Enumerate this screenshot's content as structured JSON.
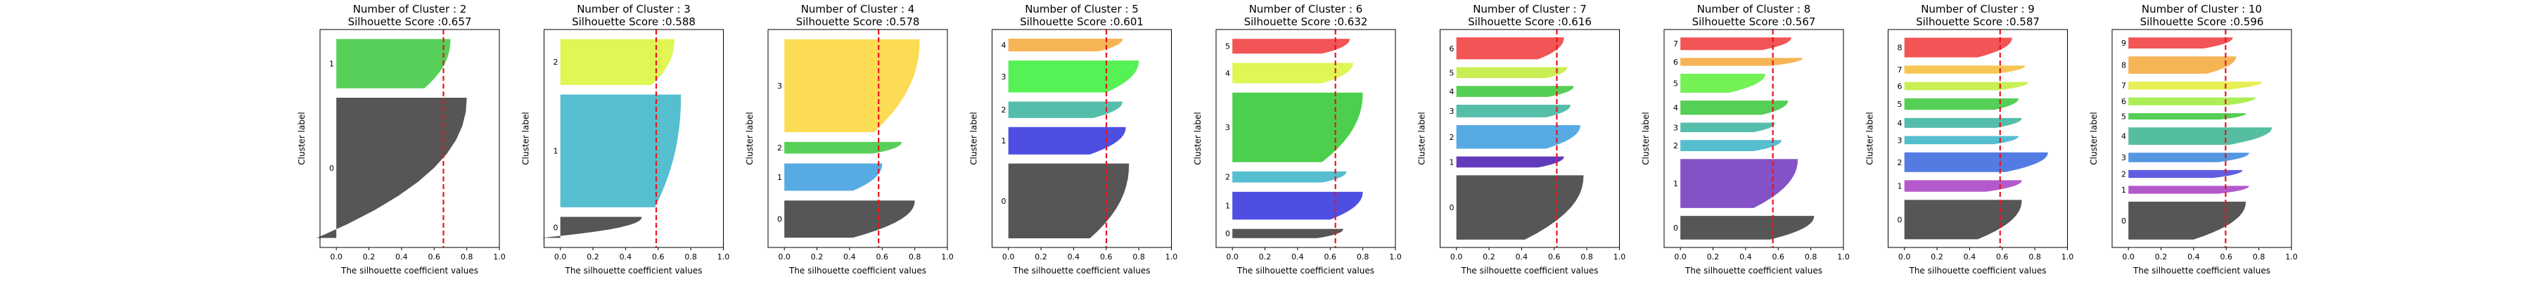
{
  "chart_data": [
    {
      "type": "silhouette",
      "title": "Number of Cluster : 2",
      "subtitle": "Silhouette Score :0.657",
      "xlabel": "The silhouette coefficient values",
      "ylabel": "Cluster label",
      "xlim": [
        -0.1,
        1.0
      ],
      "xticks": [
        0.0,
        0.2,
        0.4,
        0.6,
        0.8,
        1.0
      ],
      "avg_score": 0.657,
      "clusters": [
        {
          "label": "0",
          "size": 148,
          "max": 0.8,
          "min": -0.12,
          "color": "#4d4d4d"
        },
        {
          "label": "1",
          "size": 52,
          "max": 0.7,
          "min": 0.54,
          "color": "#4fcc4f"
        }
      ]
    },
    {
      "type": "silhouette",
      "title": "Number of Cluster : 3",
      "subtitle": "Silhouette Score :0.588",
      "xlabel": "The silhouette coefficient values",
      "ylabel": "Cluster label",
      "xlim": [
        -0.1,
        1.0
      ],
      "xticks": [
        0.0,
        0.2,
        0.4,
        0.6,
        0.8,
        1.0
      ],
      "avg_score": 0.588,
      "clusters": [
        {
          "label": "0",
          "size": 22,
          "max": 0.5,
          "min": -0.12,
          "color": "#4d4d4d"
        },
        {
          "label": "1",
          "size": 118,
          "max": 0.74,
          "min": 0.58,
          "color": "#4cbccc"
        },
        {
          "label": "2",
          "size": 48,
          "max": 0.7,
          "min": 0.56,
          "color": "#ddf54c"
        }
      ]
    },
    {
      "type": "silhouette",
      "title": "Number of Cluster : 4",
      "subtitle": "Silhouette Score :0.578",
      "xlabel": "The silhouette coefficient values",
      "ylabel": "Cluster label",
      "xlim": [
        -0.1,
        1.0
      ],
      "xticks": [
        0.0,
        0.2,
        0.4,
        0.6,
        0.8,
        1.0
      ],
      "avg_score": 0.578,
      "clusters": [
        {
          "label": "0",
          "size": 38,
          "max": 0.8,
          "min": 0.42,
          "color": "#4d4d4d"
        },
        {
          "label": "1",
          "size": 28,
          "max": 0.6,
          "min": 0.42,
          "color": "#4ea6e0"
        },
        {
          "label": "2",
          "size": 12,
          "max": 0.72,
          "min": 0.54,
          "color": "#4fcc4f"
        },
        {
          "label": "3",
          "size": 95,
          "max": 0.83,
          "min": 0.55,
          "color": "#fcd94c"
        }
      ]
    },
    {
      "type": "silhouette",
      "title": "Number of Cluster : 5",
      "subtitle": "Silhouette Score :0.601",
      "xlabel": "The silhouette coefficient values",
      "ylabel": "Cluster label",
      "xlim": [
        -0.1,
        1.0
      ],
      "xticks": [
        0.0,
        0.2,
        0.4,
        0.6,
        0.8,
        1.0
      ],
      "avg_score": 0.601,
      "clusters": [
        {
          "label": "0",
          "size": 82,
          "max": 0.74,
          "min": 0.5,
          "color": "#4d4d4d"
        },
        {
          "label": "1",
          "size": 30,
          "max": 0.72,
          "min": 0.5,
          "color": "#4444e0"
        },
        {
          "label": "2",
          "size": 18,
          "max": 0.7,
          "min": 0.52,
          "color": "#4cbba6"
        },
        {
          "label": "3",
          "size": 35,
          "max": 0.8,
          "min": 0.6,
          "color": "#4cf04c"
        },
        {
          "label": "4",
          "size": 14,
          "max": 0.7,
          "min": 0.55,
          "color": "#f5b04c"
        }
      ]
    },
    {
      "type": "silhouette",
      "title": "Number of Cluster : 6",
      "subtitle": "Silhouette Score :0.632",
      "xlabel": "The silhouette coefficient values",
      "ylabel": "Cluster label",
      "xlim": [
        -0.1,
        1.0
      ],
      "xticks": [
        0.0,
        0.2,
        0.4,
        0.6,
        0.8,
        1.0
      ],
      "avg_score": 0.632,
      "clusters": [
        {
          "label": "0",
          "size": 10,
          "max": 0.68,
          "min": 0.52,
          "color": "#4d4d4d"
        },
        {
          "label": "1",
          "size": 30,
          "max": 0.8,
          "min": 0.6,
          "color": "#4444e0"
        },
        {
          "label": "2",
          "size": 12,
          "max": 0.7,
          "min": 0.55,
          "color": "#4cbbcc"
        },
        {
          "label": "3",
          "size": 75,
          "max": 0.8,
          "min": 0.55,
          "color": "#42cc42"
        },
        {
          "label": "4",
          "size": 22,
          "max": 0.74,
          "min": 0.55,
          "color": "#ddf54c"
        },
        {
          "label": "5",
          "size": 16,
          "max": 0.72,
          "min": 0.55,
          "color": "#f04c4c"
        }
      ]
    },
    {
      "type": "silhouette",
      "title": "Number of Cluster : 7",
      "subtitle": "Silhouette Score :0.616",
      "xlabel": "The silhouette coefficient values",
      "ylabel": "Cluster label",
      "xlim": [
        -0.1,
        1.0
      ],
      "xticks": [
        0.0,
        0.2,
        0.4,
        0.6,
        0.8,
        1.0
      ],
      "avg_score": 0.616,
      "clusters": [
        {
          "label": "0",
          "size": 82,
          "max": 0.78,
          "min": 0.42,
          "color": "#4d4d4d"
        },
        {
          "label": "1",
          "size": 14,
          "max": 0.66,
          "min": 0.5,
          "color": "#5a2fb8"
        },
        {
          "label": "2",
          "size": 30,
          "max": 0.76,
          "min": 0.55,
          "color": "#4ea6e0"
        },
        {
          "label": "3",
          "size": 16,
          "max": 0.7,
          "min": 0.55,
          "color": "#4cbba6"
        },
        {
          "label": "4",
          "size": 14,
          "max": 0.72,
          "min": 0.56,
          "color": "#4ccc4c"
        },
        {
          "label": "5",
          "size": 14,
          "max": 0.68,
          "min": 0.55,
          "color": "#c6ee4c"
        },
        {
          "label": "6",
          "size": 28,
          "max": 0.66,
          "min": 0.5,
          "color": "#f04c4c"
        }
      ]
    },
    {
      "type": "silhouette",
      "title": "Number of Cluster : 8",
      "subtitle": "Silhouette Score :0.567",
      "xlabel": "The silhouette coefficient values",
      "ylabel": "Cluster label",
      "xlim": [
        -0.1,
        1.0
      ],
      "xticks": [
        0.0,
        0.2,
        0.4,
        0.6,
        0.8,
        1.0
      ],
      "avg_score": 0.567,
      "clusters": [
        {
          "label": "0",
          "size": 30,
          "max": 0.82,
          "min": 0.55,
          "color": "#4d4d4d"
        },
        {
          "label": "1",
          "size": 62,
          "max": 0.72,
          "min": 0.45,
          "color": "#7d49c4"
        },
        {
          "label": "2",
          "size": 14,
          "max": 0.62,
          "min": 0.45,
          "color": "#4cbbcc"
        },
        {
          "label": "3",
          "size": 12,
          "max": 0.58,
          "min": 0.45,
          "color": "#4cbba6"
        },
        {
          "label": "4",
          "size": 18,
          "max": 0.66,
          "min": 0.5,
          "color": "#4ccc4c"
        },
        {
          "label": "5",
          "size": 24,
          "max": 0.52,
          "min": 0.3,
          "color": "#6cf04c"
        },
        {
          "label": "6",
          "size": 10,
          "max": 0.75,
          "min": 0.55,
          "color": "#f5b04c"
        },
        {
          "label": "7",
          "size": 16,
          "max": 0.68,
          "min": 0.5,
          "color": "#f04c4c"
        }
      ]
    },
    {
      "type": "silhouette",
      "title": "Number of Cluster : 9",
      "subtitle": "Silhouette Score :0.587",
      "xlabel": "The silhouette coefficient values",
      "ylabel": "Cluster label",
      "xlim": [
        -0.1,
        1.0
      ],
      "xticks": [
        0.0,
        0.2,
        0.4,
        0.6,
        0.8,
        1.0
      ],
      "avg_score": 0.587,
      "clusters": [
        {
          "label": "0",
          "size": 48,
          "max": 0.72,
          "min": 0.45,
          "color": "#4d4d4d"
        },
        {
          "label": "1",
          "size": 14,
          "max": 0.72,
          "min": 0.5,
          "color": "#b050c8"
        },
        {
          "label": "2",
          "size": 24,
          "max": 0.88,
          "min": 0.62,
          "color": "#4a74e0"
        },
        {
          "label": "3",
          "size": 10,
          "max": 0.7,
          "min": 0.55,
          "color": "#4cbbcc"
        },
        {
          "label": "4",
          "size": 12,
          "max": 0.72,
          "min": 0.56,
          "color": "#4cbba6"
        },
        {
          "label": "5",
          "size": 14,
          "max": 0.7,
          "min": 0.55,
          "color": "#4ccc4c"
        },
        {
          "label": "6",
          "size": 10,
          "max": 0.76,
          "min": 0.58,
          "color": "#c6ee4c"
        },
        {
          "label": "7",
          "size": 10,
          "max": 0.74,
          "min": 0.56,
          "color": "#f5c44c"
        },
        {
          "label": "8",
          "size": 24,
          "max": 0.66,
          "min": 0.45,
          "color": "#f04c4c"
        }
      ]
    },
    {
      "type": "silhouette",
      "title": "Number of Cluster : 10",
      "subtitle": "Silhouette Score :0.596",
      "xlabel": "The silhouette coefficient values",
      "ylabel": "Cluster label",
      "xlim": [
        -0.1,
        1.0
      ],
      "xticks": [
        0.0,
        0.2,
        0.4,
        0.6,
        0.8,
        1.0
      ],
      "avg_score": 0.596,
      "clusters": [
        {
          "label": "0",
          "size": 48,
          "max": 0.72,
          "min": 0.4,
          "color": "#4d4d4d"
        },
        {
          "label": "1",
          "size": 10,
          "max": 0.74,
          "min": 0.55,
          "color": "#b050c8"
        },
        {
          "label": "2",
          "size": 10,
          "max": 0.7,
          "min": 0.52,
          "color": "#5a55e0"
        },
        {
          "label": "3",
          "size": 12,
          "max": 0.74,
          "min": 0.55,
          "color": "#4a90e0"
        },
        {
          "label": "4",
          "size": 22,
          "max": 0.88,
          "min": 0.62,
          "color": "#4cbb9c"
        },
        {
          "label": "5",
          "size": 8,
          "max": 0.72,
          "min": 0.56,
          "color": "#4ccc4c"
        },
        {
          "label": "6",
          "size": 10,
          "max": 0.78,
          "min": 0.6,
          "color": "#a6ee4c"
        },
        {
          "label": "7",
          "size": 10,
          "max": 0.82,
          "min": 0.62,
          "color": "#e6ee4c"
        },
        {
          "label": "8",
          "size": 22,
          "max": 0.66,
          "min": 0.48,
          "color": "#f5b04c"
        },
        {
          "label": "9",
          "size": 14,
          "max": 0.64,
          "min": 0.46,
          "color": "#f04c4c"
        }
      ]
    }
  ]
}
